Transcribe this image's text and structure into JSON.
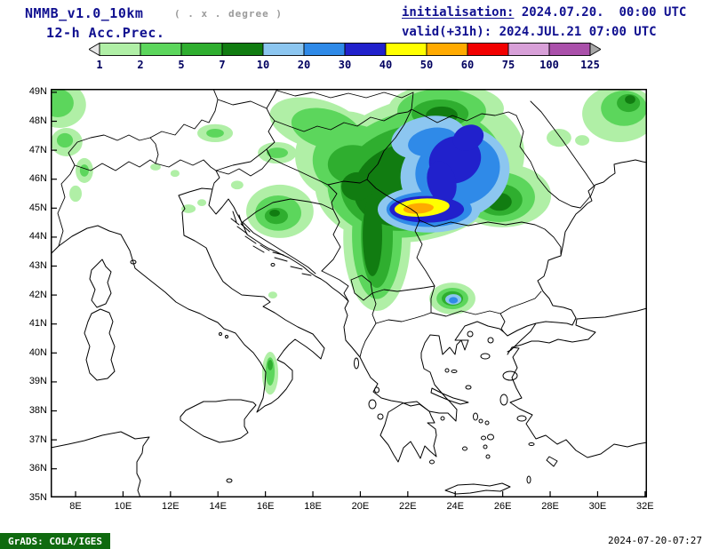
{
  "header": {
    "model": "NMMB_v1.0_10km",
    "resolution_note": "( . x . degree )",
    "product": "12-h Acc.Prec.",
    "init_label": "initialisation:",
    "init_value": " 2024.07.20.  00:00 UTC",
    "valid_label": "valid(+31h):",
    "valid_value": " 2024.JUL.21 07:00 UTC"
  },
  "footer": {
    "credit": "GrADS: COLA/IGES",
    "timestamp": "2024-07-20-07:27"
  },
  "colors": {
    "header_navy": "#101090",
    "note_gray": "#9a9a9a",
    "footer_green": "#0f6a0f"
  },
  "colorbar": {
    "levels": [
      "1",
      "2",
      "5",
      "7",
      "10",
      "20",
      "30",
      "40",
      "50",
      "60",
      "75",
      "100",
      "125"
    ],
    "segment_colors": [
      "#b0efa6",
      "#5cd65c",
      "#2fae2f",
      "#117c11",
      "#8cc6f0",
      "#2f8ae8",
      "#2121cc",
      "#ffff00",
      "#ffaa00",
      "#f20000",
      "#d8a0d8",
      "#aa50aa"
    ],
    "under_arrow_color": "#e8e8e8",
    "over_arrow_color": "#a8a8a8",
    "label_color": "#000060"
  },
  "map": {
    "lat_ticks": [
      "49N",
      "48N",
      "47N",
      "46N",
      "45N",
      "44N",
      "43N",
      "42N",
      "41N",
      "40N",
      "39N",
      "38N",
      "37N",
      "36N",
      "35N"
    ],
    "lon_ticks": [
      "8E",
      "10E",
      "12E",
      "14E",
      "16E",
      "18E",
      "20E",
      "22E",
      "24E",
      "26E",
      "28E",
      "30E",
      "32E"
    ]
  },
  "chart_data": {
    "type": "heatmap",
    "title": "NMMB_v1.0_10km 12-h Acc.Prec.",
    "units_note": "12-h accumulated precipitation, filled contours (mm)",
    "levels": [
      1,
      2,
      5,
      7,
      10,
      20,
      30,
      40,
      50,
      60,
      75,
      100,
      125
    ],
    "palette": [
      "#b0efa6",
      "#5cd65c",
      "#2fae2f",
      "#117c11",
      "#8cc6f0",
      "#2f8ae8",
      "#2121cc",
      "#ffff00",
      "#ffaa00",
      "#f20000",
      "#d8a0d8",
      "#aa50aa"
    ],
    "map_extent": {
      "lon": [
        7.0,
        32.1
      ],
      "lat": [
        35.0,
        49.1
      ]
    },
    "features": [
      {
        "desc": "large precipitation shield over Romania / E Hungary / N Serbia, 1-30 mm broad area",
        "center": {
          "lon": 22.5,
          "lat": 46.3
        }
      },
      {
        "desc": "intense core 40-60 mm elongated W-E near 45N between 21.5E and 23.5E",
        "center": {
          "lon": 22.5,
          "lat": 45.0
        }
      },
      {
        "desc": "30-40 mm band over Transylvania around 23.5-25E, 46-47.5N",
        "center": {
          "lon": 24.0,
          "lat": 46.7
        }
      },
      {
        "desc": "secondary 10-30 mm spot over W Bulgaria near 24E, 42N",
        "center": {
          "lon": 23.9,
          "lat": 41.9
        }
      },
      {
        "desc": "1-10 mm patches over Bosnia/Croatia, Alps, NW corner and top-right corner (Ukraine)",
        "center": {
          "lon": 16.6,
          "lat": 44.9
        }
      }
    ]
  },
  "precipitation": {
    "cells": [
      {
        "level_mm": 1,
        "color": "#b0efa6",
        "ellipses": [
          [
            22.5,
            46.36,
            4.5,
            2.45,
            -15
          ],
          [
            20.7,
            43.97,
            1.42,
            2.52,
            0
          ],
          [
            19.31,
            46.82,
            2.06,
            1.53,
            0
          ],
          [
            25.98,
            45.44,
            2.06,
            1.1,
            0
          ],
          [
            23.62,
            48.44,
            2.43,
            0.86,
            0
          ],
          [
            18.19,
            47.89,
            2.06,
            0.86,
            15
          ],
          [
            28.37,
            47.43,
            0.52,
            0.31,
            0
          ],
          [
            16.61,
            44.89,
            1.42,
            0.92,
            0
          ],
          [
            13.88,
            47.59,
            0.75,
            0.31,
            0
          ],
          [
            16.5,
            46.91,
            0.82,
            0.37,
            0
          ],
          [
            7.32,
            48.57,
            1.12,
            0.8,
            0
          ],
          [
            7.62,
            47.28,
            0.67,
            0.49,
            0
          ],
          [
            8.37,
            46.3,
            0.37,
            0.43,
            0
          ],
          [
            8.0,
            45.5,
            0.26,
            0.28,
            0
          ],
          [
            11.37,
            46.42,
            0.22,
            0.12,
            0
          ],
          [
            12.76,
            44.98,
            0.3,
            0.15,
            0
          ],
          [
            13.32,
            45.19,
            0.19,
            0.12,
            0
          ],
          [
            16.31,
            42.0,
            0.19,
            0.12,
            0
          ],
          [
            23.88,
            41.88,
            0.97,
            0.55,
            0
          ],
          [
            21.18,
            42.59,
            0.41,
            0.28,
            0
          ],
          [
            16.2,
            39.3,
            0.34,
            0.74,
            0
          ],
          [
            30.92,
            48.26,
            1.57,
            0.98,
            0
          ],
          [
            29.35,
            47.34,
            0.3,
            0.18,
            0
          ],
          [
            12.19,
            46.2,
            0.19,
            0.12,
            0
          ],
          [
            14.81,
            45.8,
            0.26,
            0.15,
            0
          ]
        ]
      },
      {
        "level_mm": 2,
        "color": "#5cd65c",
        "ellipses": [
          [
            22.3,
            46.2,
            3.75,
            2.15,
            -15
          ],
          [
            20.7,
            44.06,
            1.05,
            2.2,
            0
          ],
          [
            19.68,
            46.66,
            1.69,
            1.23,
            0
          ],
          [
            25.86,
            45.38,
            1.5,
            0.86,
            0
          ],
          [
            23.43,
            48.35,
            1.87,
            0.77,
            0
          ],
          [
            18.56,
            47.74,
            1.5,
            0.67,
            15
          ],
          [
            16.54,
            44.83,
            0.97,
            0.61,
            0
          ],
          [
            13.88,
            47.59,
            0.37,
            0.15,
            0
          ],
          [
            16.5,
            46.91,
            0.45,
            0.18,
            0
          ],
          [
            7.25,
            48.63,
            0.67,
            0.49,
            0
          ],
          [
            7.55,
            47.34,
            0.34,
            0.25,
            0
          ],
          [
            23.88,
            41.88,
            0.67,
            0.37,
            0
          ],
          [
            21.18,
            42.59,
            0.19,
            0.12,
            0
          ],
          [
            16.2,
            39.36,
            0.19,
            0.49,
            0
          ],
          [
            31.11,
            48.45,
            0.97,
            0.61,
            0
          ],
          [
            8.37,
            46.3,
            0.19,
            0.21,
            0
          ]
        ]
      },
      {
        "level_mm": 5,
        "color": "#2fae2f",
        "ellipses": [
          [
            22.12,
            46.05,
            3.0,
            1.78,
            -15
          ],
          [
            20.7,
            44.03,
            0.67,
            1.78,
            0
          ],
          [
            19.68,
            46.51,
            1.05,
            0.67,
            0
          ],
          [
            25.86,
            45.29,
            0.97,
            0.55,
            0
          ],
          [
            23.36,
            48.26,
            1.2,
            0.49,
            0
          ],
          [
            16.46,
            44.73,
            0.49,
            0.28,
            0
          ],
          [
            23.88,
            41.88,
            0.45,
            0.25,
            0
          ],
          [
            31.3,
            48.63,
            0.49,
            0.31,
            0
          ],
          [
            16.2,
            39.58,
            0.11,
            0.18,
            0
          ]
        ]
      },
      {
        "level_mm": 7,
        "color": "#117c11",
        "ellipses": [
          [
            21.93,
            45.81,
            2.25,
            1.41,
            -15
          ],
          [
            20.51,
            44.06,
            0.41,
            1.41,
            0
          ],
          [
            23.43,
            48.2,
            0.67,
            0.31,
            0
          ],
          [
            25.86,
            45.22,
            0.52,
            0.31,
            0
          ],
          [
            16.39,
            44.83,
            0.22,
            0.12,
            0
          ],
          [
            31.37,
            48.75,
            0.22,
            0.15,
            0
          ],
          [
            19.87,
            45.75,
            0.67,
            0.49,
            0
          ]
        ]
      },
      {
        "level_mm": 10,
        "color": "#8cc6f0",
        "ellipses": [
          [
            23.99,
            46.21,
            2.32,
            1.6,
            -15
          ],
          [
            22.9,
            44.96,
            2.17,
            0.8,
            0
          ],
          [
            22.86,
            47.43,
            1.57,
            0.74,
            -10
          ],
          [
            23.92,
            41.85,
            0.34,
            0.18,
            0
          ]
        ]
      },
      {
        "level_mm": 20,
        "color": "#2f8ae8",
        "ellipses": [
          [
            24.1,
            46.3,
            1.8,
            1.23,
            -15
          ],
          [
            22.9,
            44.96,
            1.8,
            0.61,
            0
          ],
          [
            23.05,
            47.28,
            1.05,
            0.49,
            -10
          ],
          [
            23.92,
            41.82,
            0.19,
            0.11,
            0
          ]
        ]
      },
      {
        "level_mm": 30,
        "color": "#2121cc",
        "ellipses": [
          [
            23.99,
            46.67,
            1.12,
            0.8,
            -25
          ],
          [
            22.8,
            44.96,
            1.57,
            0.46,
            0
          ],
          [
            23.43,
            45.9,
            0.6,
            0.74,
            -15
          ],
          [
            24.55,
            47.43,
            0.67,
            0.43,
            -25
          ]
        ]
      },
      {
        "level_mm": 40,
        "color": "#ffff00",
        "ellipses": [
          [
            22.6,
            45.02,
            1.16,
            0.31,
            -4
          ]
        ]
      },
      {
        "level_mm": 50,
        "color": "#ffaa00",
        "ellipses": [
          [
            22.45,
            44.99,
            0.64,
            0.18,
            -4
          ]
        ]
      }
    ]
  }
}
